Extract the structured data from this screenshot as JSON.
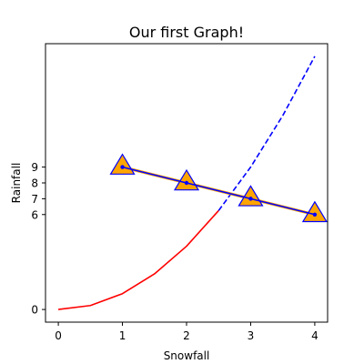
{
  "chart_data": {
    "type": "line",
    "title": "Our first Graph!",
    "xlabel": "Snowfall",
    "ylabel": "Rainfall",
    "xlim": [
      -0.2,
      4.2
    ],
    "ylim": [
      -0.8,
      16.8
    ],
    "x_ticks": [
      0,
      1,
      2,
      3,
      4
    ],
    "y_ticks": [
      0,
      6,
      7,
      8,
      9
    ],
    "grid": false,
    "series": [
      {
        "style": "solid",
        "color": "#ff0000",
        "marker": "none",
        "x": [
          0,
          0.5,
          1,
          1.5,
          2,
          2.5
        ],
        "y": [
          0,
          0.25,
          1,
          2.25,
          4,
          6.25
        ]
      },
      {
        "style": "dashed",
        "color": "#0000ff",
        "marker": "none",
        "x": [
          2.5,
          3,
          3.5,
          4
        ],
        "y": [
          6.25,
          9,
          12.25,
          16
        ]
      },
      {
        "style": "solid",
        "color": "#ffa500",
        "marker": "triangle",
        "marker_fill": "#ffa500",
        "marker_edge": "#0000ff",
        "x": [
          1,
          2,
          3,
          4
        ],
        "y": [
          9,
          8,
          7,
          6
        ]
      },
      {
        "style": "solid",
        "color": "#0000ff",
        "marker": "dot",
        "x": [
          1,
          2,
          3,
          4
        ],
        "y": [
          9,
          8,
          7,
          6
        ]
      }
    ]
  }
}
